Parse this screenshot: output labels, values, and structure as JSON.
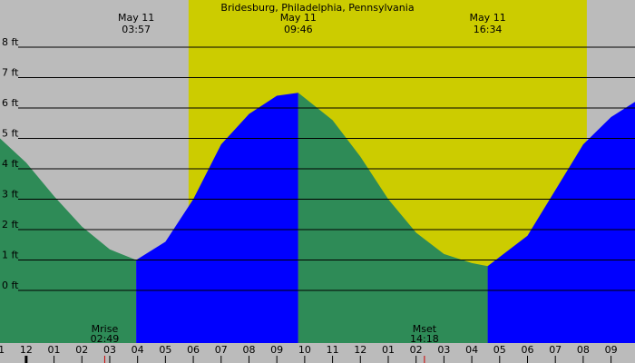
{
  "chart_data": {
    "type": "tide",
    "title": "Bridesburg, Philadelphia, Pennsylvania",
    "x": [
      -0.94,
      0,
      1,
      2,
      3,
      3.95,
      5,
      6,
      7,
      8,
      9,
      9.77,
      11,
      12,
      13,
      14,
      15,
      16,
      16.57,
      18,
      19,
      20,
      21,
      21.86
    ],
    "values": [
      5.0,
      4.2,
      3.1,
      2.1,
      1.35,
      1.0,
      1.6,
      3.0,
      4.8,
      5.8,
      6.4,
      6.5,
      5.6,
      4.4,
      3.0,
      1.9,
      1.2,
      0.9,
      0.8,
      1.8,
      3.3,
      4.8,
      5.7,
      6.2
    ],
    "rising_color": "#0000ff",
    "falling_color": "#2e8b57",
    "day_color": "#cccc00",
    "night_color": "#bbbbbb",
    "daylight": [
      5.83,
      20.13
    ],
    "xlim": [
      -0.94,
      21.86
    ],
    "ylim": [
      -1.73,
      9.55
    ],
    "yticks": [
      {
        "value": 8,
        "label": "8 ft"
      },
      {
        "value": 7,
        "label": "7 ft"
      },
      {
        "value": 6,
        "label": "6 ft"
      },
      {
        "value": 5,
        "label": "5 ft"
      },
      {
        "value": 4,
        "label": "4 ft"
      },
      {
        "value": 3,
        "label": "3 ft"
      },
      {
        "value": 2,
        "label": "2 ft"
      },
      {
        "value": 1,
        "label": "1 ft"
      },
      {
        "value": 0,
        "label": "0 ft"
      }
    ],
    "xticks": [
      {
        "value": -1,
        "label": "11"
      },
      {
        "value": 0,
        "label": "12"
      },
      {
        "value": 1,
        "label": "01"
      },
      {
        "value": 2,
        "label": "02"
      },
      {
        "value": 3,
        "label": "03"
      },
      {
        "value": 4,
        "label": "04"
      },
      {
        "value": 5,
        "label": "05"
      },
      {
        "value": 6,
        "label": "06"
      },
      {
        "value": 7,
        "label": "07"
      },
      {
        "value": 8,
        "label": "08"
      },
      {
        "value": 9,
        "label": "09"
      },
      {
        "value": 10,
        "label": "10"
      },
      {
        "value": 11,
        "label": "11"
      },
      {
        "value": 12,
        "label": "12"
      },
      {
        "value": 13,
        "label": "01"
      },
      {
        "value": 14,
        "label": "02"
      },
      {
        "value": 15,
        "label": "03"
      },
      {
        "value": 16,
        "label": "04"
      },
      {
        "value": 17,
        "label": "05"
      },
      {
        "value": 18,
        "label": "06"
      },
      {
        "value": 19,
        "label": "07"
      },
      {
        "value": 20,
        "label": "08"
      },
      {
        "value": 21,
        "label": "09"
      }
    ],
    "tide_events": [
      {
        "date": "May 11",
        "time": {
          "value": 3.95,
          "label": "03:57"
        }
      },
      {
        "date": "May 11",
        "time": {
          "value": 9.77,
          "label": "09:46"
        }
      },
      {
        "date": "May 11",
        "time": {
          "value": 16.57,
          "label": "16:34"
        }
      }
    ],
    "moon_events": [
      {
        "name": "Mrise",
        "time": {
          "value": 2.82,
          "label": "02:49"
        }
      },
      {
        "name": "Mset",
        "time": {
          "value": 14.3,
          "label": "14:18"
        }
      }
    ]
  }
}
